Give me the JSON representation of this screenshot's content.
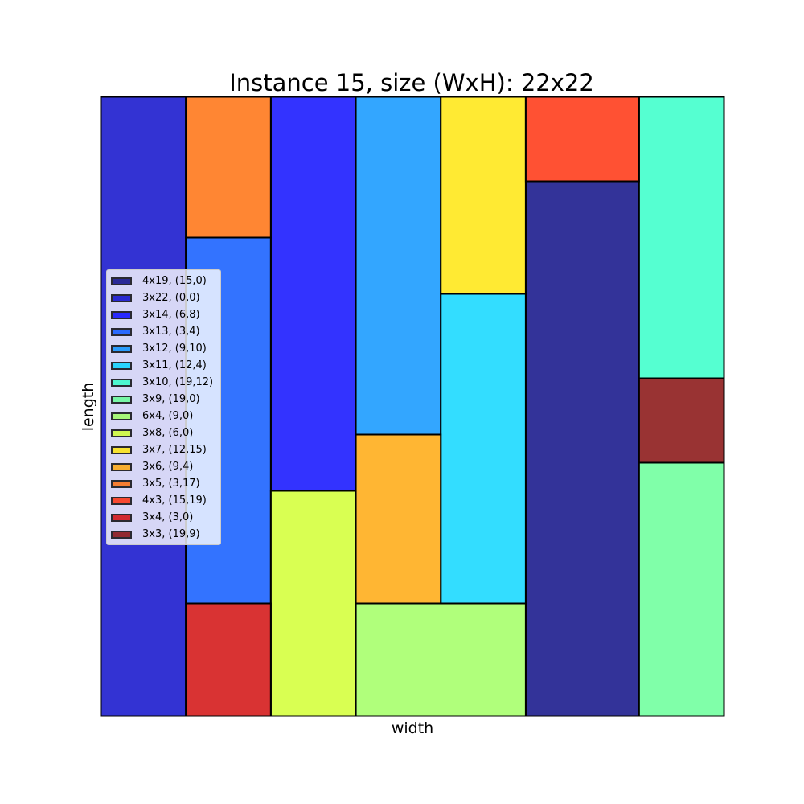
{
  "chart_data": {
    "type": "rectangle-packing",
    "title": "Instance 15, size (WxH): 22x22",
    "xlabel": "width",
    "ylabel": "length",
    "grid": false,
    "container": {
      "width": 22,
      "height": 22
    },
    "legend_position": "center-left",
    "rectangles": [
      {
        "label": "4x19, (15,0)",
        "w": 4,
        "h": 19,
        "x": 15,
        "y": 0,
        "color": "#000080"
      },
      {
        "label": "3x22, (0,0)",
        "w": 3,
        "h": 22,
        "x": 0,
        "y": 0,
        "color": "#0000c8"
      },
      {
        "label": "3x14, (6,8)",
        "w": 3,
        "h": 14,
        "x": 6,
        "y": 8,
        "color": "#0000ff"
      },
      {
        "label": "3x13, (3,4)",
        "w": 3,
        "h": 13,
        "x": 3,
        "y": 4,
        "color": "#0050ff"
      },
      {
        "label": "3x12, (9,10)",
        "w": 3,
        "h": 12,
        "x": 9,
        "y": 10,
        "color": "#0090ff"
      },
      {
        "label": "3x11, (12,4)",
        "w": 3,
        "h": 11,
        "x": 12,
        "y": 4,
        "color": "#00d4ff"
      },
      {
        "label": "3x10, (19,12)",
        "w": 3,
        "h": 10,
        "x": 19,
        "y": 12,
        "color": "#2bffc6"
      },
      {
        "label": "3x9, (19,0)",
        "w": 3,
        "h": 9,
        "x": 19,
        "y": 0,
        "color": "#60ff93"
      },
      {
        "label": "6x4, (9,0)",
        "w": 6,
        "h": 4,
        "x": 9,
        "y": 0,
        "color": "#9cff5a"
      },
      {
        "label": "3x8, (6,0)",
        "w": 3,
        "h": 8,
        "x": 6,
        "y": 0,
        "color": "#cfff27"
      },
      {
        "label": "3x7, (12,15)",
        "w": 3,
        "h": 7,
        "x": 12,
        "y": 15,
        "color": "#ffe500"
      },
      {
        "label": "3x6, (9,4)",
        "w": 3,
        "h": 6,
        "x": 9,
        "y": 4,
        "color": "#ffa400"
      },
      {
        "label": "3x5, (3,17)",
        "w": 3,
        "h": 5,
        "x": 3,
        "y": 17,
        "color": "#ff6800"
      },
      {
        "label": "4x3, (15,19)",
        "w": 4,
        "h": 3,
        "x": 15,
        "y": 19,
        "color": "#ff2500"
      },
      {
        "label": "3x4, (3,0)",
        "w": 3,
        "h": 4,
        "x": 3,
        "y": 0,
        "color": "#d00000"
      },
      {
        "label": "3x3, (19,9)",
        "w": 3,
        "h": 3,
        "x": 19,
        "y": 9,
        "color": "#800000"
      }
    ]
  }
}
